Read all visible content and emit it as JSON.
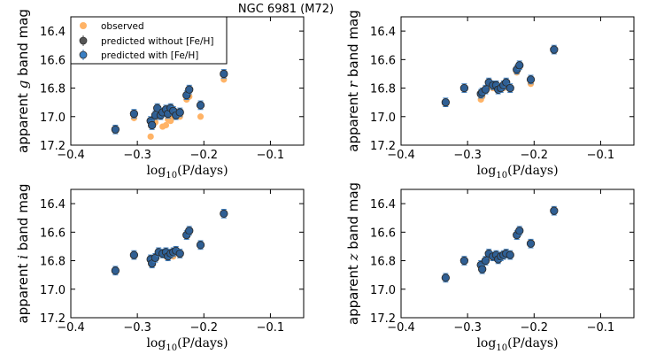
{
  "chart_data": {
    "type": "scatter",
    "title": "NGC 6981 (M72)",
    "xlabel": "log10(P/days)",
    "xlabel_parts": {
      "base": "log",
      "sub": "10",
      "rest": "(P/days)"
    },
    "xlim": [
      -0.4,
      -0.05
    ],
    "ylim": [
      17.2,
      16.3
    ],
    "xticks": [
      -0.4,
      -0.3,
      -0.2,
      -0.1
    ],
    "xtick_labels": [
      "−0.4",
      "−0.3",
      "−0.2",
      "−0.1"
    ],
    "yticks": [
      16.4,
      16.6,
      16.8,
      17.0,
      17.2
    ],
    "ytick_labels": [
      "16.4",
      "16.6",
      "16.8",
      "17.0",
      "17.2"
    ],
    "legend": {
      "placement": "top-left",
      "entries": [
        {
          "label": "observed",
          "color": "#ffb366"
        },
        {
          "label": "predicted without [Fe/H]",
          "color": "#555555"
        },
        {
          "label": "predicted with [Fe/H]",
          "color": "#3a7fc4"
        }
      ]
    },
    "colors": {
      "observed": "#ffb366",
      "predicted": "#2f5f94",
      "edge": "#2a2a2a",
      "errorbar": "#3a7fc4"
    },
    "panels": [
      {
        "band": "g",
        "ylabel": {
          "pre": "apparent ",
          "band": "g",
          "post": " band mag"
        },
        "x": [
          -0.333,
          -0.305,
          -0.28,
          -0.278,
          -0.273,
          -0.27,
          -0.265,
          -0.262,
          -0.257,
          -0.254,
          -0.25,
          -0.246,
          -0.242,
          -0.236,
          -0.226,
          -0.222,
          -0.205,
          -0.17
        ],
        "observed": [
          17.1,
          17.01,
          17.14,
          17.05,
          17.04,
          17.0,
          16.99,
          17.07,
          17.06,
          17.02,
          17.03,
          17.0,
          16.99,
          17.0,
          16.88,
          16.86,
          17.0,
          16.74
        ],
        "predicted": [
          17.09,
          16.98,
          17.03,
          17.06,
          16.99,
          16.94,
          16.99,
          16.97,
          16.95,
          16.98,
          16.94,
          16.96,
          16.99,
          16.97,
          16.85,
          16.81,
          16.92,
          16.7
        ]
      },
      {
        "band": "r",
        "ylabel": {
          "pre": "apparent ",
          "band": "r",
          "post": " band mag"
        },
        "x": [
          -0.333,
          -0.305,
          -0.28,
          -0.278,
          -0.273,
          -0.268,
          -0.262,
          -0.257,
          -0.254,
          -0.25,
          -0.246,
          -0.242,
          -0.236,
          -0.226,
          -0.222,
          -0.205,
          -0.17
        ],
        "observed": [
          16.91,
          16.8,
          16.88,
          16.86,
          16.82,
          16.78,
          16.8,
          16.8,
          16.81,
          16.79,
          16.8,
          16.78,
          16.8,
          16.69,
          16.65,
          16.77,
          16.54
        ],
        "predicted": [
          16.9,
          16.8,
          16.84,
          16.83,
          16.81,
          16.76,
          16.78,
          16.78,
          16.81,
          16.8,
          16.78,
          16.76,
          16.8,
          16.67,
          16.64,
          16.74,
          16.53
        ]
      },
      {
        "band": "i",
        "ylabel": {
          "pre": "apparent ",
          "band": "i",
          "post": " band mag"
        },
        "x": [
          -0.333,
          -0.305,
          -0.28,
          -0.278,
          -0.273,
          -0.268,
          -0.262,
          -0.257,
          -0.254,
          -0.25,
          -0.246,
          -0.242,
          -0.236,
          -0.226,
          -0.222,
          -0.205,
          -0.17
        ],
        "observed": [
          16.87,
          16.77,
          16.8,
          16.81,
          16.78,
          16.74,
          16.76,
          16.77,
          16.77,
          16.76,
          16.77,
          16.74,
          16.76,
          16.63,
          16.6,
          16.69,
          16.47
        ],
        "predicted": [
          16.87,
          16.76,
          16.79,
          16.82,
          16.78,
          16.74,
          16.75,
          16.74,
          16.77,
          16.75,
          16.74,
          16.73,
          16.75,
          16.62,
          16.59,
          16.69,
          16.47
        ]
      },
      {
        "band": "z",
        "ylabel": {
          "pre": "apparent ",
          "band": "z",
          "post": " band mag"
        },
        "x": [
          -0.333,
          -0.305,
          -0.28,
          -0.278,
          -0.273,
          -0.268,
          -0.262,
          -0.257,
          -0.254,
          -0.25,
          -0.246,
          -0.242,
          -0.236,
          -0.226,
          -0.222,
          -0.205,
          -0.17
        ],
        "observed": [
          16.92,
          16.8,
          16.84,
          16.85,
          16.8,
          16.76,
          16.78,
          16.78,
          16.79,
          16.77,
          16.77,
          16.74,
          16.75,
          16.62,
          16.59,
          16.67,
          16.44
        ],
        "predicted": [
          16.92,
          16.8,
          16.83,
          16.86,
          16.8,
          16.75,
          16.77,
          16.76,
          16.79,
          16.77,
          16.76,
          16.75,
          16.76,
          16.62,
          16.59,
          16.68,
          16.45
        ]
      }
    ]
  }
}
